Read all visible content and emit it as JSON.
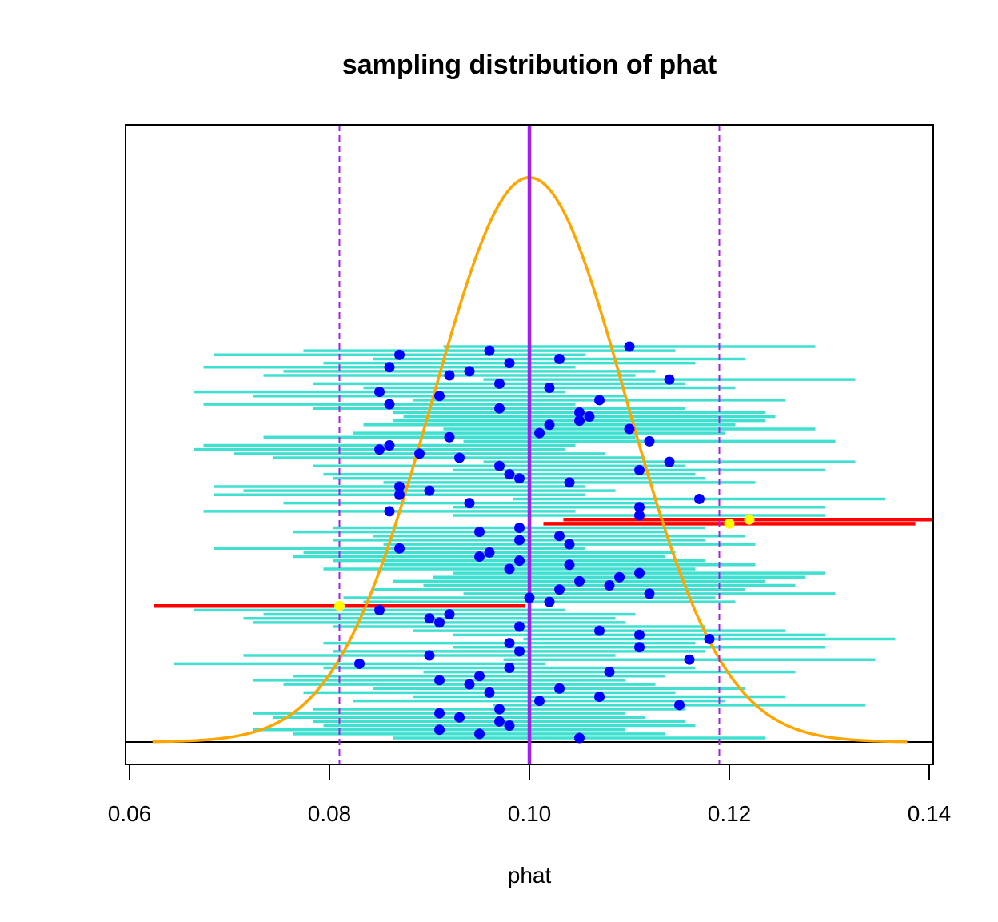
{
  "chart_data": {
    "type": "scatter",
    "title": "sampling distribution of phat",
    "xlabel": "phat",
    "ylabel": "",
    "xlim": [
      0.0596,
      0.1404
    ],
    "x_ticks": [
      0.06,
      0.08,
      0.1,
      0.12,
      0.14
    ],
    "x_tick_labels": [
      "0.06",
      "0.08",
      "0.10",
      "0.12",
      "0.14"
    ],
    "true_p": 0.1,
    "critical_lines": [
      0.081,
      0.119
    ],
    "density_curve": {
      "mean": 0.1,
      "sd": 0.0097,
      "x_range": [
        0.0623,
        0.1378
      ],
      "peak": 41.1,
      "y_range": [
        0,
        44
      ]
    },
    "interval_half_width": 0.0186,
    "intervals": [
      {
        "phat": 0.11,
        "covers": true
      },
      {
        "phat": 0.096,
        "covers": true
      },
      {
        "phat": 0.087,
        "covers": true
      },
      {
        "phat": 0.103,
        "covers": true
      },
      {
        "phat": 0.098,
        "covers": true
      },
      {
        "phat": 0.086,
        "covers": true
      },
      {
        "phat": 0.094,
        "covers": true
      },
      {
        "phat": 0.092,
        "covers": true
      },
      {
        "phat": 0.114,
        "covers": true
      },
      {
        "phat": 0.097,
        "covers": true
      },
      {
        "phat": 0.102,
        "covers": true
      },
      {
        "phat": 0.085,
        "covers": true
      },
      {
        "phat": 0.091,
        "covers": true
      },
      {
        "phat": 0.107,
        "covers": true
      },
      {
        "phat": 0.086,
        "covers": true
      },
      {
        "phat": 0.097,
        "covers": true
      },
      {
        "phat": 0.105,
        "covers": true
      },
      {
        "phat": 0.106,
        "covers": true
      },
      {
        "phat": 0.105,
        "covers": true
      },
      {
        "phat": 0.102,
        "covers": true
      },
      {
        "phat": 0.11,
        "covers": true
      },
      {
        "phat": 0.101,
        "covers": true
      },
      {
        "phat": 0.092,
        "covers": true
      },
      {
        "phat": 0.112,
        "covers": true
      },
      {
        "phat": 0.086,
        "covers": true
      },
      {
        "phat": 0.085,
        "covers": true
      },
      {
        "phat": 0.089,
        "covers": true
      },
      {
        "phat": 0.093,
        "covers": true
      },
      {
        "phat": 0.114,
        "covers": true
      },
      {
        "phat": 0.097,
        "covers": true
      },
      {
        "phat": 0.111,
        "covers": true
      },
      {
        "phat": 0.098,
        "covers": true
      },
      {
        "phat": 0.099,
        "covers": true
      },
      {
        "phat": 0.104,
        "covers": true
      },
      {
        "phat": 0.087,
        "covers": true
      },
      {
        "phat": 0.09,
        "covers": true
      },
      {
        "phat": 0.087,
        "covers": true
      },
      {
        "phat": 0.117,
        "covers": true
      },
      {
        "phat": 0.094,
        "covers": true
      },
      {
        "phat": 0.111,
        "covers": true
      },
      {
        "phat": 0.086,
        "covers": true
      },
      {
        "phat": 0.111,
        "covers": true
      },
      {
        "phat": 0.122,
        "covers": false
      },
      {
        "phat": 0.12,
        "covers": false
      },
      {
        "phat": 0.099,
        "covers": true
      },
      {
        "phat": 0.095,
        "covers": true
      },
      {
        "phat": 0.103,
        "covers": true
      },
      {
        "phat": 0.099,
        "covers": true
      },
      {
        "phat": 0.104,
        "covers": true
      },
      {
        "phat": 0.087,
        "covers": true
      },
      {
        "phat": 0.096,
        "covers": true
      },
      {
        "phat": 0.095,
        "covers": true
      },
      {
        "phat": 0.099,
        "covers": true
      },
      {
        "phat": 0.104,
        "covers": true
      },
      {
        "phat": 0.098,
        "covers": true
      },
      {
        "phat": 0.111,
        "covers": true
      },
      {
        "phat": 0.109,
        "covers": true
      },
      {
        "phat": 0.105,
        "covers": true
      },
      {
        "phat": 0.108,
        "covers": true
      },
      {
        "phat": 0.103,
        "covers": true
      },
      {
        "phat": 0.112,
        "covers": true
      },
      {
        "phat": 0.1,
        "covers": true
      },
      {
        "phat": 0.102,
        "covers": true
      },
      {
        "phat": 0.081,
        "covers": false
      },
      {
        "phat": 0.085,
        "covers": true
      },
      {
        "phat": 0.092,
        "covers": true
      },
      {
        "phat": 0.09,
        "covers": true
      },
      {
        "phat": 0.091,
        "covers": true
      },
      {
        "phat": 0.099,
        "covers": true
      },
      {
        "phat": 0.107,
        "covers": true
      },
      {
        "phat": 0.111,
        "covers": true
      },
      {
        "phat": 0.118,
        "covers": true
      },
      {
        "phat": 0.098,
        "covers": true
      },
      {
        "phat": 0.111,
        "covers": true
      },
      {
        "phat": 0.099,
        "covers": true
      },
      {
        "phat": 0.09,
        "covers": true
      },
      {
        "phat": 0.116,
        "covers": true
      },
      {
        "phat": 0.083,
        "covers": true
      },
      {
        "phat": 0.098,
        "covers": true
      },
      {
        "phat": 0.108,
        "covers": true
      },
      {
        "phat": 0.095,
        "covers": true
      },
      {
        "phat": 0.091,
        "covers": true
      },
      {
        "phat": 0.094,
        "covers": true
      },
      {
        "phat": 0.103,
        "covers": true
      },
      {
        "phat": 0.096,
        "covers": true
      },
      {
        "phat": 0.107,
        "covers": true
      },
      {
        "phat": 0.101,
        "covers": true
      },
      {
        "phat": 0.115,
        "covers": true
      },
      {
        "phat": 0.097,
        "covers": true
      },
      {
        "phat": 0.091,
        "covers": true
      },
      {
        "phat": 0.093,
        "covers": true
      },
      {
        "phat": 0.097,
        "covers": true
      },
      {
        "phat": 0.098,
        "covers": true
      },
      {
        "phat": 0.091,
        "covers": true
      },
      {
        "phat": 0.095,
        "covers": true
      },
      {
        "phat": 0.105,
        "covers": true
      }
    ],
    "grid": false,
    "legend": "none",
    "colors": {
      "density": "#ffa500",
      "true_line": "#a020f0",
      "critical": "#a020f0",
      "interval_cover": "#40e0d0",
      "interval_miss": "#ff0000",
      "point_cover": "#0000ff",
      "point_miss": "#ffff00"
    }
  }
}
